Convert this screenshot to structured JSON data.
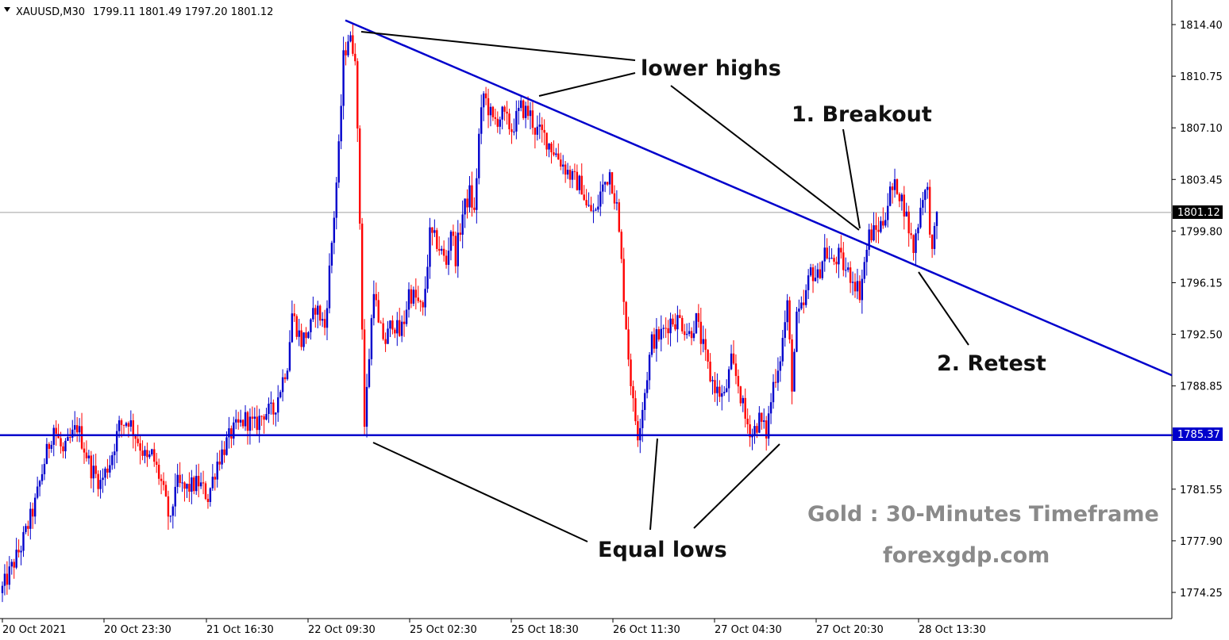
{
  "header": {
    "symbol_timeframe": "XAUUSD,M30",
    "ohlc": "1799.11 1801.49 1797.20 1801.12"
  },
  "colors": {
    "bull": "#0000cc",
    "bear": "#ff0000",
    "trendline": "#0000cc",
    "support": "#0000cc",
    "current_price_line": "#a0a0a0"
  },
  "annotations": {
    "lower_highs": "lower highs",
    "breakout": "1. Breakout",
    "retest": "2. Retest",
    "equal_lows": "Equal lows",
    "watermark_title": "Gold : 30-Minutes Timeframe",
    "watermark_site": "forexgdp.com"
  },
  "chart_data": {
    "type": "candlestick",
    "symbol": "XAUUSD",
    "timeframe": "M30",
    "ylim": [
      1772.5,
      1816.0
    ],
    "y_ticks": [
      "1814.40",
      "1810.75",
      "1807.10",
      "1803.45",
      "1799.80",
      "1796.15",
      "1792.50",
      "1788.85",
      "1785.37",
      "1781.55",
      "1777.90",
      "1774.25"
    ],
    "x_ticks": [
      "20 Oct 2021",
      "20 Oct 23:30",
      "21 Oct 16:30",
      "22 Oct 09:30",
      "25 Oct 02:30",
      "25 Oct 18:30",
      "26 Oct 11:30",
      "27 Oct 04:30",
      "27 Oct 20:30",
      "28 Oct 13:30"
    ],
    "current_price": 1801.12,
    "current_price_label": "1801.12",
    "support_level": 1785.37,
    "support_label": "1785.37",
    "trendline": {
      "start": [
        0,
        1814.7
      ],
      "end": [
        294,
        1789.6
      ]
    },
    "price_path": [
      [
        0,
        1774.5
      ],
      [
        8,
        1777.5
      ],
      [
        14,
        1780.5
      ],
      [
        18,
        1783.5
      ],
      [
        22,
        1786.0
      ],
      [
        26,
        1784.0
      ],
      [
        32,
        1786.0
      ],
      [
        38,
        1783.0
      ],
      [
        42,
        1782.0
      ],
      [
        46,
        1783.5
      ],
      [
        50,
        1786.0
      ],
      [
        54,
        1786.5
      ],
      [
        58,
        1785.0
      ],
      [
        62,
        1783.5
      ],
      [
        64,
        1784.0
      ],
      [
        68,
        1782.0
      ],
      [
        72,
        1779.0
      ],
      [
        74,
        1782.0
      ],
      [
        78,
        1781.5
      ],
      [
        84,
        1782.0
      ],
      [
        88,
        1781.0
      ],
      [
        92,
        1783.5
      ],
      [
        98,
        1785.5
      ],
      [
        104,
        1786.5
      ],
      [
        108,
        1786.0
      ],
      [
        112,
        1787.0
      ],
      [
        116,
        1787.0
      ],
      [
        122,
        1790.5
      ],
      [
        124,
        1794.0
      ],
      [
        128,
        1792.0
      ],
      [
        132,
        1793.0
      ],
      [
        134,
        1794.5
      ],
      [
        138,
        1793.0
      ],
      [
        142,
        1801.0
      ],
      [
        144,
        1805.5
      ],
      [
        146,
        1812.0
      ],
      [
        148,
        1813.5
      ],
      [
        151,
        1812.5
      ],
      [
        153,
        1800.5
      ],
      [
        155,
        1786.0
      ],
      [
        157,
        1791.0
      ],
      [
        159,
        1796.0
      ],
      [
        161,
        1793.0
      ],
      [
        164,
        1792.0
      ],
      [
        167,
        1793.5
      ],
      [
        170,
        1792.5
      ],
      [
        172,
        1793.5
      ],
      [
        174,
        1795.5
      ],
      [
        177,
        1795.0
      ],
      [
        180,
        1794.0
      ],
      [
        183,
        1799.5
      ],
      [
        186,
        1799.0
      ],
      [
        190,
        1797.5
      ],
      [
        192,
        1800.0
      ],
      [
        194,
        1798.0
      ],
      [
        197,
        1801.0
      ],
      [
        200,
        1802.5
      ],
      [
        202,
        1801.0
      ],
      [
        204,
        1806.5
      ],
      [
        206,
        1809.5
      ],
      [
        210,
        1807.5
      ],
      [
        214,
        1808.0
      ],
      [
        218,
        1807.0
      ],
      [
        222,
        1808.5
      ],
      [
        226,
        1808.0
      ],
      [
        228,
        1807.0
      ],
      [
        232,
        1806.5
      ],
      [
        236,
        1805.5
      ],
      [
        240,
        1804.5
      ],
      [
        244,
        1803.5
      ],
      [
        248,
        1803.0
      ],
      [
        250,
        1801.5
      ],
      [
        254,
        1801.0
      ],
      [
        256,
        1802.5
      ],
      [
        260,
        1804.0
      ],
      [
        263,
        1801.5
      ],
      [
        265,
        1797.5
      ],
      [
        268,
        1791.0
      ],
      [
        270,
        1787.5
      ],
      [
        272,
        1785.5
      ],
      [
        275,
        1788.5
      ],
      [
        278,
        1792.0
      ],
      [
        282,
        1792.5
      ],
      [
        286,
        1793.5
      ],
      [
        290,
        1793.5
      ],
      [
        294,
        1792.5
      ],
      [
        297,
        1793.5
      ],
      [
        300,
        1791.5
      ],
      [
        303,
        1789.5
      ],
      [
        306,
        1788.5
      ],
      [
        309,
        1788.0
      ],
      [
        312,
        1790.5
      ],
      [
        315,
        1789.0
      ],
      [
        318,
        1786.5
      ],
      [
        321,
        1785.5
      ],
      [
        324,
        1786.5
      ],
      [
        327,
        1785.5
      ],
      [
        330,
        1789.0
      ],
      [
        333,
        1791.0
      ],
      [
        336,
        1794.5
      ],
      [
        338,
        1789.0
      ],
      [
        340,
        1793.5
      ],
      [
        343,
        1794.5
      ],
      [
        346,
        1797.0
      ],
      [
        349,
        1796.5
      ],
      [
        352,
        1798.5
      ],
      [
        355,
        1797.5
      ],
      [
        358,
        1798.0
      ],
      [
        361,
        1797.0
      ],
      [
        364,
        1796.5
      ],
      [
        367,
        1795.5
      ],
      [
        369,
        1797.5
      ],
      [
        371,
        1799.5
      ],
      [
        374,
        1799.8
      ],
      [
        377,
        1800.5
      ],
      [
        380,
        1802.5
      ],
      [
        383,
        1803.0
      ],
      [
        386,
        1801.5
      ],
      [
        388,
        1800.0
      ],
      [
        390,
        1798.5
      ],
      [
        392,
        1800.5
      ],
      [
        394,
        1802.5
      ],
      [
        396,
        1802.5
      ],
      [
        398,
        1798.0
      ],
      [
        400,
        1801.0
      ]
    ]
  }
}
